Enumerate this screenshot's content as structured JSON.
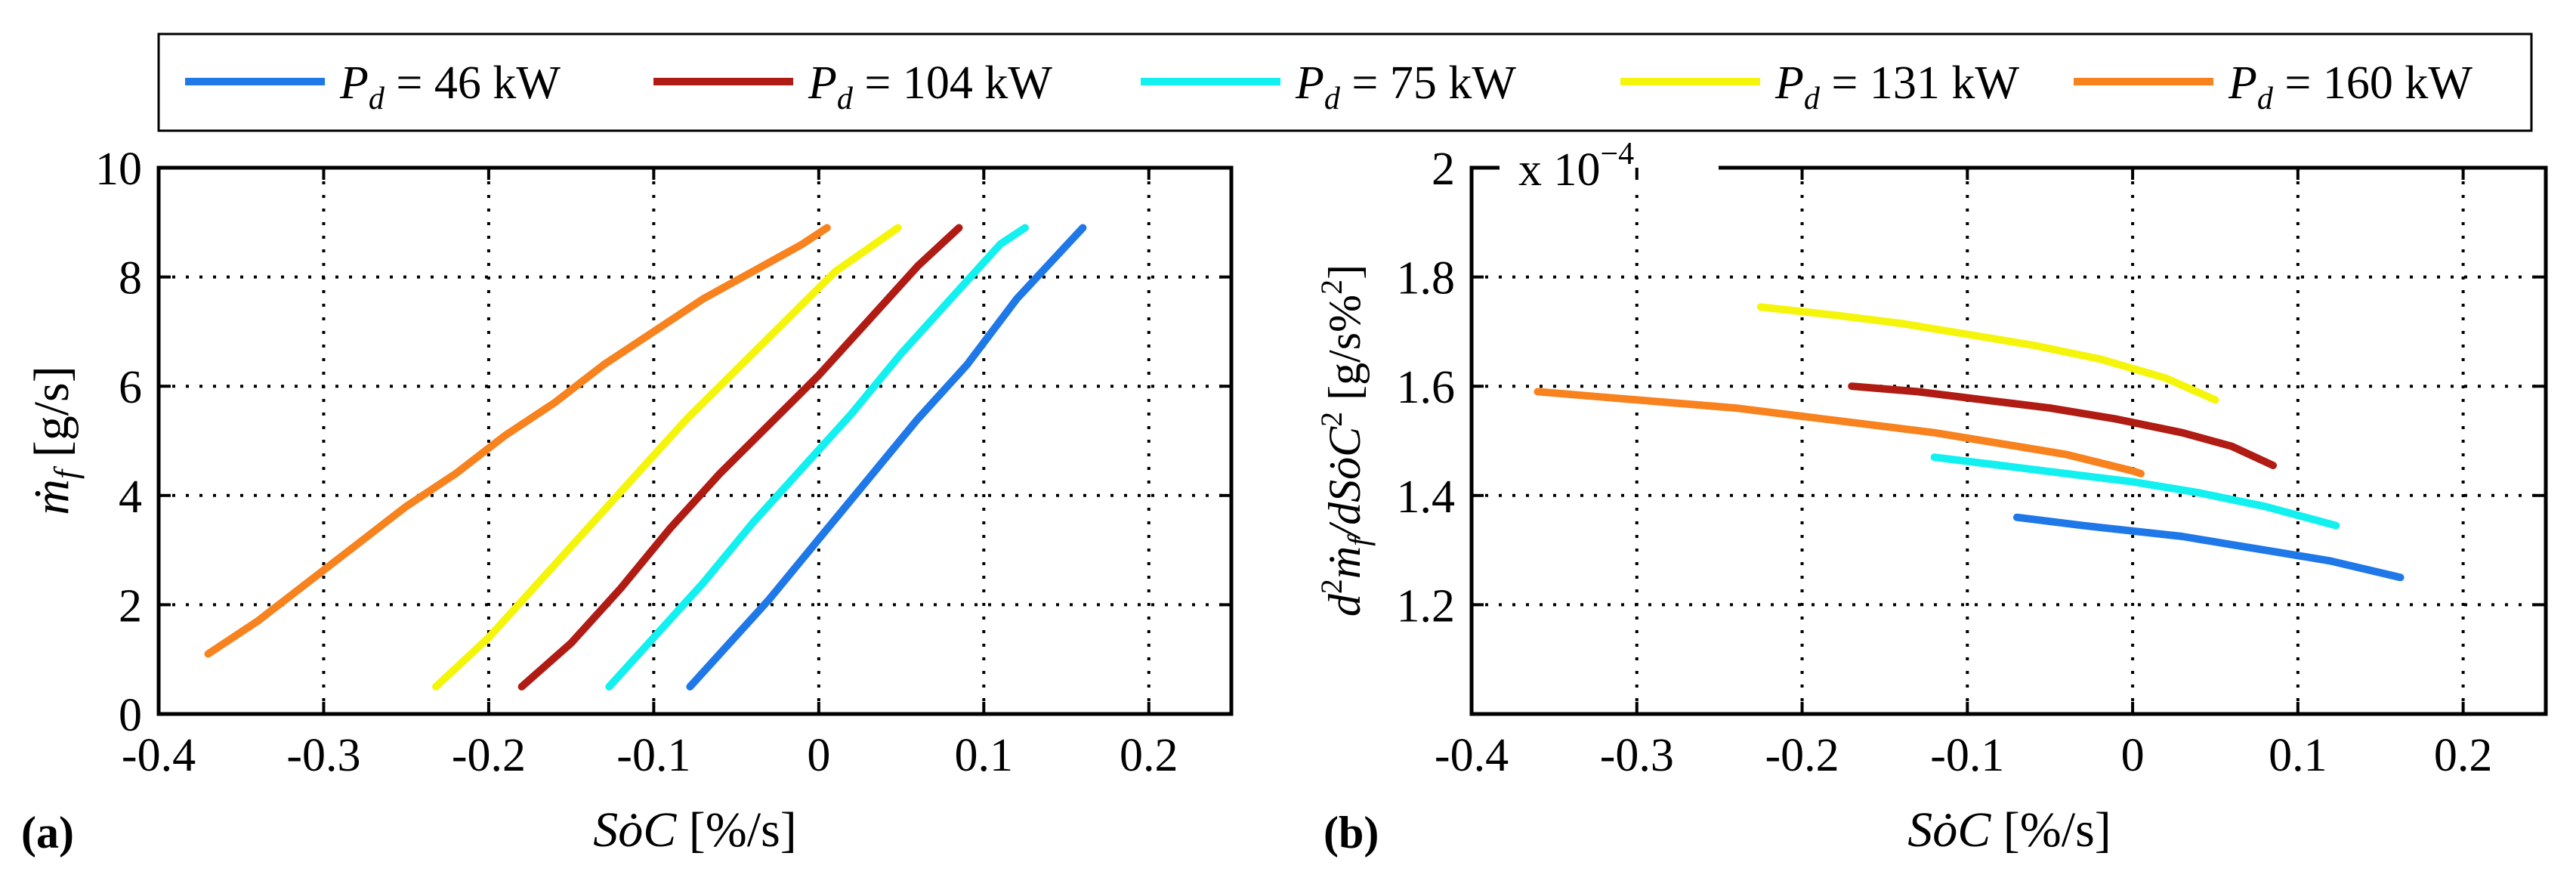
{
  "legend": {
    "entries": [
      {
        "symbol": "P",
        "sub": "d",
        "rest": " = 46 kW",
        "color": "#1f78e8"
      },
      {
        "symbol": "P",
        "sub": "d",
        "rest": " = 104 kW",
        "color": "#b01c13"
      },
      {
        "symbol": "P",
        "sub": "d",
        "rest": " = 75 kW",
        "color": "#12f0f0"
      },
      {
        "symbol": "P",
        "sub": "d",
        "rest": " = 131 kW",
        "color": "#f5f50c"
      },
      {
        "symbol": "P",
        "sub": "d",
        "rest": " = 160 kW",
        "color": "#f7821e"
      }
    ]
  },
  "chart_data": [
    {
      "type": "line",
      "panel_label": "(a)",
      "xlabel": "SȯC [%/s]",
      "ylabel": "ṁf [g/s]",
      "xlim": [
        -0.4,
        0.25
      ],
      "ylim": [
        0,
        10
      ],
      "xticks": [
        -0.4,
        -0.3,
        -0.2,
        -0.1,
        0,
        0.1,
        0.2
      ],
      "xtick_labels": [
        "-0.4",
        "-0.3",
        "-0.2",
        "-0.1",
        "0",
        "0.1",
        "0.2"
      ],
      "yticks": [
        0,
        2,
        4,
        6,
        8,
        10
      ],
      "ytick_labels": [
        "0",
        "2",
        "4",
        "6",
        "8",
        "10"
      ],
      "grid": true,
      "series": [
        {
          "name": "Pd = 46 kW",
          "color": "#1f78e8",
          "x": [
            -0.078,
            -0.06,
            -0.03,
            0.0,
            0.03,
            0.06,
            0.09,
            0.12,
            0.16
          ],
          "y": [
            0.5,
            1.1,
            2.1,
            3.2,
            4.3,
            5.4,
            6.4,
            7.6,
            8.9
          ]
        },
        {
          "name": "Pd = 104 kW",
          "color": "#b01c13",
          "x": [
            -0.18,
            -0.15,
            -0.12,
            -0.09,
            -0.06,
            -0.03,
            0.0,
            0.03,
            0.06,
            0.085
          ],
          "y": [
            0.5,
            1.3,
            2.3,
            3.4,
            4.4,
            5.3,
            6.2,
            7.2,
            8.2,
            8.9
          ]
        },
        {
          "name": "Pd = 75 kW",
          "color": "#12f0f0",
          "x": [
            -0.127,
            -0.1,
            -0.07,
            -0.04,
            -0.01,
            0.02,
            0.05,
            0.08,
            0.11,
            0.125
          ],
          "y": [
            0.5,
            1.4,
            2.4,
            3.5,
            4.5,
            5.5,
            6.6,
            7.6,
            8.6,
            8.9
          ]
        },
        {
          "name": "Pd = 131 kW",
          "color": "#f5f50c",
          "x": [
            -0.232,
            -0.2,
            -0.17,
            -0.14,
            -0.11,
            -0.08,
            -0.05,
            -0.02,
            0.01,
            0.048
          ],
          "y": [
            0.5,
            1.4,
            2.4,
            3.4,
            4.4,
            5.4,
            6.3,
            7.2,
            8.1,
            8.9
          ]
        },
        {
          "name": "Pd = 160 kW",
          "color": "#f7821e",
          "x": [
            -0.37,
            -0.34,
            -0.31,
            -0.28,
            -0.25,
            -0.22,
            -0.19,
            -0.16,
            -0.13,
            -0.1,
            -0.07,
            -0.04,
            -0.01,
            0.005
          ],
          "y": [
            1.1,
            1.7,
            2.4,
            3.1,
            3.8,
            4.4,
            5.1,
            5.7,
            6.4,
            7.0,
            7.6,
            8.1,
            8.6,
            8.9
          ]
        }
      ]
    },
    {
      "type": "line",
      "panel_label": "(b)",
      "xlabel": "SȯC [%/s]",
      "ylabel": "d²ṁf/dSȯC² [g/s%²]",
      "exponent_label": "x 10",
      "exponent_power": "−4",
      "xlim": [
        -0.4,
        0.25
      ],
      "ylim": [
        1.0,
        2.0
      ],
      "xticks": [
        -0.4,
        -0.3,
        -0.2,
        -0.1,
        0,
        0.1,
        0.2
      ],
      "xtick_labels": [
        "-0.4",
        "-0.3",
        "-0.2",
        "-0.1",
        "0",
        "0.1",
        "0.2"
      ],
      "yticks": [
        1.2,
        1.4,
        1.6,
        1.8,
        2.0
      ],
      "ytick_labels": [
        "1.2",
        "1.4",
        "1.6",
        "1.8",
        "2"
      ],
      "grid": true,
      "series": [
        {
          "name": "Pd = 46 kW",
          "color": "#1f78e8",
          "x": [
            -0.07,
            -0.03,
            0.0,
            0.03,
            0.06,
            0.09,
            0.12,
            0.162
          ],
          "y": [
            1.36,
            1.345,
            1.335,
            1.325,
            1.31,
            1.295,
            1.28,
            1.25
          ]
        },
        {
          "name": "Pd = 104 kW",
          "color": "#b01c13",
          "x": [
            -0.17,
            -0.13,
            -0.09,
            -0.05,
            -0.01,
            0.03,
            0.06,
            0.085
          ],
          "y": [
            1.6,
            1.59,
            1.575,
            1.56,
            1.54,
            1.515,
            1.49,
            1.455
          ]
        },
        {
          "name": "Pd = 75 kW",
          "color": "#12f0f0",
          "x": [
            -0.12,
            -0.08,
            -0.04,
            0.0,
            0.04,
            0.08,
            0.123
          ],
          "y": [
            1.47,
            1.455,
            1.44,
            1.425,
            1.405,
            1.38,
            1.345
          ]
        },
        {
          "name": "Pd = 131 kW",
          "color": "#f5f50c",
          "x": [
            -0.225,
            -0.18,
            -0.14,
            -0.1,
            -0.06,
            -0.02,
            0.02,
            0.05
          ],
          "y": [
            1.745,
            1.73,
            1.715,
            1.695,
            1.675,
            1.65,
            1.615,
            1.575
          ]
        },
        {
          "name": "Pd = 160 kW",
          "color": "#f7821e",
          "x": [
            -0.36,
            -0.32,
            -0.28,
            -0.24,
            -0.2,
            -0.16,
            -0.12,
            -0.08,
            -0.04,
            0.0,
            0.005
          ],
          "y": [
            1.59,
            1.58,
            1.57,
            1.56,
            1.545,
            1.53,
            1.515,
            1.495,
            1.475,
            1.445,
            1.44
          ]
        }
      ]
    }
  ]
}
